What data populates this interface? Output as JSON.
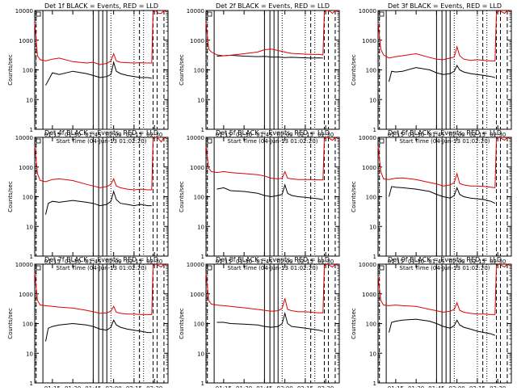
{
  "common": {
    "xlabel": "Start Time (04-Jun-13 01:02:20)",
    "ylabel": "Counts/sec",
    "x_tick_labels": [
      "01:15",
      "01:30",
      "01:45",
      "02:00",
      "02:15",
      "02:30"
    ],
    "y_tick_labels": [
      "1",
      "10",
      "100",
      "1000",
      "10000"
    ],
    "event_color": "#000000",
    "lld_color": "#e00000"
  },
  "chart_data": [
    {
      "type": "line",
      "title": "Det 1f BLACK = Events, RED = LLD",
      "xlim": [
        "01:02",
        "02:40"
      ],
      "ylim": [
        1,
        10000
      ],
      "yscale": "log",
      "series": [
        {
          "color": "#000000",
          "x": [
            "01:10",
            "01:15",
            "01:20",
            "01:30",
            "01:40",
            "01:45",
            "01:50",
            "01:55",
            "01:58",
            "02:00",
            "02:02",
            "02:05",
            "02:10",
            "02:15",
            "02:20",
            "02:25",
            "02:28"
          ],
          "y": [
            30,
            80,
            70,
            90,
            75,
            65,
            55,
            60,
            70,
            180,
            90,
            75,
            65,
            60,
            55,
            55,
            52
          ]
        },
        {
          "color": "#e00000",
          "x": [
            "01:02",
            "01:04",
            "01:06",
            "01:10",
            "01:15",
            "01:20",
            "01:30",
            "01:40",
            "01:45",
            "01:50",
            "01:55",
            "01:58",
            "02:00",
            "02:02",
            "02:05",
            "02:10",
            "02:15",
            "02:20",
            "02:25",
            "02:28",
            "02:29",
            "02:31",
            "02:33",
            "02:35",
            "02:37",
            "02:39"
          ],
          "y": [
            4000,
            300,
            220,
            200,
            230,
            250,
            190,
            170,
            180,
            150,
            165,
            200,
            350,
            200,
            180,
            175,
            170,
            175,
            170,
            170,
            9000,
            10000,
            8000,
            8000,
            10000,
            9000
          ]
        }
      ]
    },
    {
      "type": "line",
      "title": "Det 2f BLACK = Events, RED = LLD",
      "xlim": [
        "01:02",
        "02:40"
      ],
      "ylim": [
        1,
        10000
      ],
      "yscale": "log",
      "series": [
        {
          "color": "#000000",
          "x": [
            "01:10",
            "01:15",
            "01:20",
            "01:30",
            "01:40",
            "01:45",
            "01:50",
            "01:55",
            "02:00",
            "02:05",
            "02:10",
            "02:15",
            "02:20",
            "02:25",
            "02:28"
          ],
          "y": [
            290,
            300,
            310,
            290,
            280,
            285,
            270,
            270,
            260,
            265,
            260,
            255,
            250,
            255,
            250
          ]
        },
        {
          "color": "#e00000",
          "x": [
            "01:02",
            "01:04",
            "01:06",
            "01:10",
            "01:15",
            "01:20",
            "01:30",
            "01:40",
            "01:45",
            "01:50",
            "01:55",
            "01:58",
            "02:00",
            "02:02",
            "02:05",
            "02:10",
            "02:15",
            "02:20",
            "02:25",
            "02:28",
            "02:29",
            "02:31",
            "02:33",
            "02:35",
            "02:37",
            "02:39"
          ],
          "y": [
            4000,
            500,
            400,
            320,
            300,
            310,
            350,
            400,
            480,
            500,
            450,
            420,
            400,
            380,
            360,
            350,
            340,
            330,
            330,
            320,
            9000,
            10000,
            9500,
            8000,
            10000,
            9000
          ]
        }
      ]
    },
    {
      "type": "line",
      "title": "Det 3f BLACK = Events, RED = LLD",
      "xlim": [
        "01:02",
        "02:40"
      ],
      "ylim": [
        1,
        10000
      ],
      "yscale": "log",
      "series": [
        {
          "color": "#000000",
          "x": [
            "01:10",
            "01:12",
            "01:15",
            "01:20",
            "01:30",
            "01:40",
            "01:45",
            "01:50",
            "01:55",
            "01:58",
            "02:00",
            "02:02",
            "02:05",
            "02:10",
            "02:15",
            "02:20",
            "02:25",
            "02:28"
          ],
          "y": [
            40,
            90,
            85,
            90,
            120,
            100,
            80,
            70,
            75,
            90,
            140,
            100,
            85,
            75,
            70,
            65,
            60,
            55
          ]
        },
        {
          "color": "#e00000",
          "x": [
            "01:02",
            "01:04",
            "01:06",
            "01:10",
            "01:15",
            "01:20",
            "01:30",
            "01:40",
            "01:45",
            "01:50",
            "01:55",
            "01:58",
            "02:00",
            "02:02",
            "02:05",
            "02:10",
            "02:15",
            "02:20",
            "02:25",
            "02:28",
            "02:29",
            "02:31",
            "02:33",
            "02:35",
            "02:37",
            "02:39"
          ],
          "y": [
            4000,
            500,
            320,
            250,
            280,
            300,
            350,
            260,
            230,
            220,
            250,
            270,
            600,
            300,
            230,
            210,
            220,
            210,
            200,
            200,
            8000,
            10000,
            9000,
            8000,
            10000,
            9000
          ]
        }
      ]
    },
    {
      "type": "line",
      "title": "Det 4f BLACK = Events, RED = LLD",
      "xlim": [
        "01:02",
        "02:40"
      ],
      "ylim": [
        1,
        10000
      ],
      "yscale": "log",
      "series": [
        {
          "color": "#000000",
          "x": [
            "01:10",
            "01:12",
            "01:15",
            "01:20",
            "01:30",
            "01:40",
            "01:45",
            "01:50",
            "01:55",
            "01:58",
            "02:00",
            "02:02",
            "02:05",
            "02:10",
            "02:15",
            "02:20",
            "02:25",
            "02:28"
          ],
          "y": [
            25,
            60,
            70,
            65,
            75,
            65,
            60,
            50,
            55,
            70,
            150,
            80,
            60,
            55,
            50,
            55,
            50,
            50
          ]
        },
        {
          "color": "#e00000",
          "x": [
            "01:02",
            "01:04",
            "01:06",
            "01:10",
            "01:15",
            "01:20",
            "01:30",
            "01:40",
            "01:45",
            "01:50",
            "01:55",
            "01:58",
            "02:00",
            "02:02",
            "02:05",
            "02:10",
            "02:15",
            "02:20",
            "02:25",
            "02:28",
            "02:29",
            "02:31",
            "02:33",
            "02:35",
            "02:37",
            "02:39"
          ],
          "y": [
            5000,
            600,
            350,
            320,
            380,
            400,
            350,
            260,
            230,
            200,
            220,
            260,
            400,
            230,
            200,
            180,
            170,
            180,
            170,
            170,
            9000,
            10000,
            9000,
            7000,
            10000,
            9000
          ]
        }
      ]
    },
    {
      "type": "line",
      "title": "Det 5f BLACK = Events, RED = LLD",
      "xlim": [
        "01:02",
        "02:40"
      ],
      "ylim": [
        1,
        10000
      ],
      "yscale": "log",
      "series": [
        {
          "color": "#000000",
          "x": [
            "01:10",
            "01:15",
            "01:20",
            "01:30",
            "01:40",
            "01:45",
            "01:50",
            "01:55",
            "01:58",
            "02:00",
            "02:02",
            "02:05",
            "02:10",
            "02:15",
            "02:20",
            "02:25",
            "02:28"
          ],
          "y": [
            180,
            200,
            160,
            150,
            130,
            110,
            100,
            110,
            120,
            250,
            130,
            110,
            100,
            95,
            90,
            85,
            80
          ]
        },
        {
          "color": "#e00000",
          "x": [
            "01:02",
            "01:04",
            "01:06",
            "01:10",
            "01:15",
            "01:20",
            "01:30",
            "01:40",
            "01:45",
            "01:50",
            "01:55",
            "01:58",
            "02:00",
            "02:02",
            "02:05",
            "02:10",
            "02:15",
            "02:20",
            "02:25",
            "02:28",
            "02:29",
            "02:31",
            "02:33",
            "02:35",
            "02:37",
            "02:39"
          ],
          "y": [
            5000,
            900,
            700,
            650,
            700,
            650,
            600,
            550,
            500,
            420,
            400,
            420,
            700,
            420,
            400,
            380,
            380,
            380,
            370,
            370,
            9000,
            10000,
            9000,
            8000,
            10000,
            9000
          ]
        }
      ]
    },
    {
      "type": "line",
      "title": "Det 6f BLACK = Events, RED = LLD",
      "xlim": [
        "01:02",
        "02:40"
      ],
      "ylim": [
        1,
        10000
      ],
      "yscale": "log",
      "series": [
        {
          "color": "#000000",
          "x": [
            "01:10",
            "01:12",
            "01:15",
            "01:20",
            "01:30",
            "01:40",
            "01:45",
            "01:50",
            "01:55",
            "01:58",
            "02:00",
            "02:02",
            "02:05",
            "02:10",
            "02:15",
            "02:20",
            "02:25",
            "02:28"
          ],
          "y": [
            100,
            220,
            210,
            200,
            180,
            150,
            120,
            100,
            90,
            110,
            200,
            120,
            100,
            90,
            85,
            80,
            70,
            60
          ]
        },
        {
          "color": "#e00000",
          "x": [
            "01:02",
            "01:04",
            "01:06",
            "01:10",
            "01:15",
            "01:20",
            "01:30",
            "01:40",
            "01:45",
            "01:50",
            "01:55",
            "01:58",
            "02:00",
            "02:02",
            "02:05",
            "02:10",
            "02:15",
            "02:20",
            "02:25",
            "02:28",
            "02:29",
            "02:31",
            "02:33",
            "02:35",
            "02:37",
            "02:39"
          ],
          "y": [
            5000,
            700,
            400,
            380,
            420,
            430,
            380,
            300,
            270,
            230,
            250,
            300,
            600,
            280,
            250,
            230,
            230,
            220,
            210,
            200,
            9000,
            10000,
            9000,
            8000,
            10000,
            9000
          ]
        }
      ]
    },
    {
      "type": "line",
      "title": "Det 7f BLACK = Events, RED = LLD",
      "xlim": [
        "01:02",
        "02:40"
      ],
      "ylim": [
        1,
        10000
      ],
      "yscale": "log",
      "series": [
        {
          "color": "#000000",
          "x": [
            "01:10",
            "01:12",
            "01:15",
            "01:20",
            "01:30",
            "01:40",
            "01:45",
            "01:50",
            "01:55",
            "01:58",
            "02:00",
            "02:02",
            "02:05",
            "02:10",
            "02:15",
            "02:20",
            "02:25",
            "02:28"
          ],
          "y": [
            25,
            70,
            80,
            90,
            100,
            90,
            80,
            65,
            60,
            75,
            130,
            90,
            75,
            65,
            60,
            55,
            50,
            50
          ]
        },
        {
          "color": "#e00000",
          "x": [
            "01:02",
            "01:04",
            "01:06",
            "01:10",
            "01:15",
            "01:20",
            "01:30",
            "01:40",
            "01:45",
            "01:50",
            "01:55",
            "01:58",
            "02:00",
            "02:02",
            "02:05",
            "02:10",
            "02:15",
            "02:20",
            "02:25",
            "02:28",
            "02:29",
            "02:31",
            "02:33",
            "02:35",
            "02:37",
            "02:39"
          ],
          "y": [
            5000,
            600,
            420,
            400,
            380,
            360,
            330,
            280,
            250,
            220,
            230,
            260,
            380,
            240,
            220,
            210,
            210,
            200,
            200,
            200,
            9000,
            10000,
            9000,
            8000,
            10000,
            9000
          ]
        }
      ]
    },
    {
      "type": "line",
      "title": "Det 8f BLACK = Events, RED = LLD",
      "xlim": [
        "01:02",
        "02:40"
      ],
      "ylim": [
        1,
        10000
      ],
      "yscale": "log",
      "series": [
        {
          "color": "#000000",
          "x": [
            "01:10",
            "01:15",
            "01:20",
            "01:30",
            "01:40",
            "01:45",
            "01:50",
            "01:55",
            "01:58",
            "02:00",
            "02:02",
            "02:05",
            "02:10",
            "02:15",
            "02:20",
            "02:25",
            "02:28"
          ],
          "y": [
            110,
            110,
            100,
            95,
            90,
            80,
            75,
            80,
            100,
            220,
            100,
            80,
            75,
            70,
            65,
            60,
            55
          ]
        },
        {
          "color": "#e00000",
          "x": [
            "01:02",
            "01:04",
            "01:06",
            "01:10",
            "01:15",
            "01:20",
            "01:30",
            "01:40",
            "01:45",
            "01:50",
            "01:55",
            "01:58",
            "02:00",
            "02:02",
            "02:05",
            "02:10",
            "02:15",
            "02:20",
            "02:25",
            "02:28",
            "02:29",
            "02:31",
            "02:33",
            "02:35",
            "02:37",
            "02:39"
          ],
          "y": [
            5000,
            600,
            450,
            420,
            400,
            380,
            340,
            300,
            280,
            260,
            270,
            320,
            700,
            300,
            270,
            250,
            250,
            240,
            230,
            230,
            9000,
            10000,
            9000,
            8000,
            10000,
            9000
          ]
        }
      ]
    },
    {
      "type": "line",
      "title": "Det 9f BLACK = Events, RED = LLD",
      "xlim": [
        "01:02",
        "02:40"
      ],
      "ylim": [
        1,
        10000
      ],
      "yscale": "log",
      "series": [
        {
          "color": "#000000",
          "x": [
            "01:10",
            "01:12",
            "01:15",
            "01:20",
            "01:30",
            "01:40",
            "01:45",
            "01:50",
            "01:55",
            "01:58",
            "02:00",
            "02:02",
            "02:05",
            "02:10",
            "02:15",
            "02:20",
            "02:25",
            "02:28"
          ],
          "y": [
            50,
            110,
            120,
            130,
            140,
            120,
            100,
            80,
            70,
            85,
            130,
            90,
            75,
            65,
            55,
            50,
            45,
            40
          ]
        },
        {
          "color": "#e00000",
          "x": [
            "01:02",
            "01:04",
            "01:06",
            "01:10",
            "01:15",
            "01:20",
            "01:30",
            "01:40",
            "01:45",
            "01:50",
            "01:55",
            "01:58",
            "02:00",
            "02:02",
            "02:05",
            "02:10",
            "02:15",
            "02:20",
            "02:25",
            "02:28",
            "02:29",
            "02:31",
            "02:33",
            "02:35",
            "02:37",
            "02:39"
          ],
          "y": [
            4000,
            600,
            420,
            400,
            420,
            400,
            380,
            300,
            270,
            240,
            260,
            300,
            500,
            280,
            240,
            220,
            210,
            210,
            200,
            200,
            9000,
            10000,
            9000,
            8000,
            10000,
            9000
          ]
        }
      ]
    }
  ]
}
